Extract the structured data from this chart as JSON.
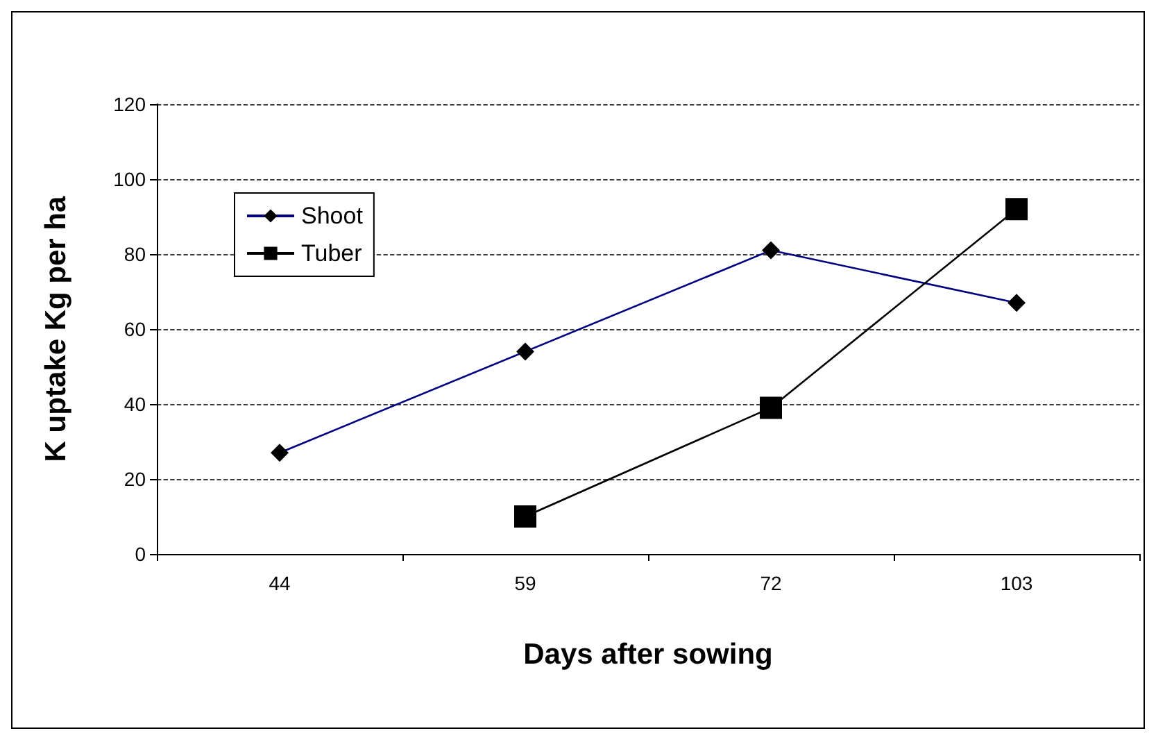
{
  "chart_data": {
    "type": "line",
    "xlabel": "Days after sowing",
    "ylabel": "K uptake Kg per ha",
    "categories": [
      "44",
      "59",
      "72",
      "103"
    ],
    "series": [
      {
        "name": "Shoot",
        "color": "#000080",
        "marker": "diamond",
        "values": [
          27,
          54,
          81,
          67
        ]
      },
      {
        "name": "Tuber",
        "color": "#000000",
        "marker": "square",
        "values": [
          null,
          10,
          39,
          92
        ]
      }
    ],
    "ylim": [
      0,
      120
    ],
    "yticks": [
      0,
      20,
      40,
      60,
      80,
      100,
      120
    ],
    "grid": "y",
    "legend": "top left",
    "line_style": "solid"
  }
}
